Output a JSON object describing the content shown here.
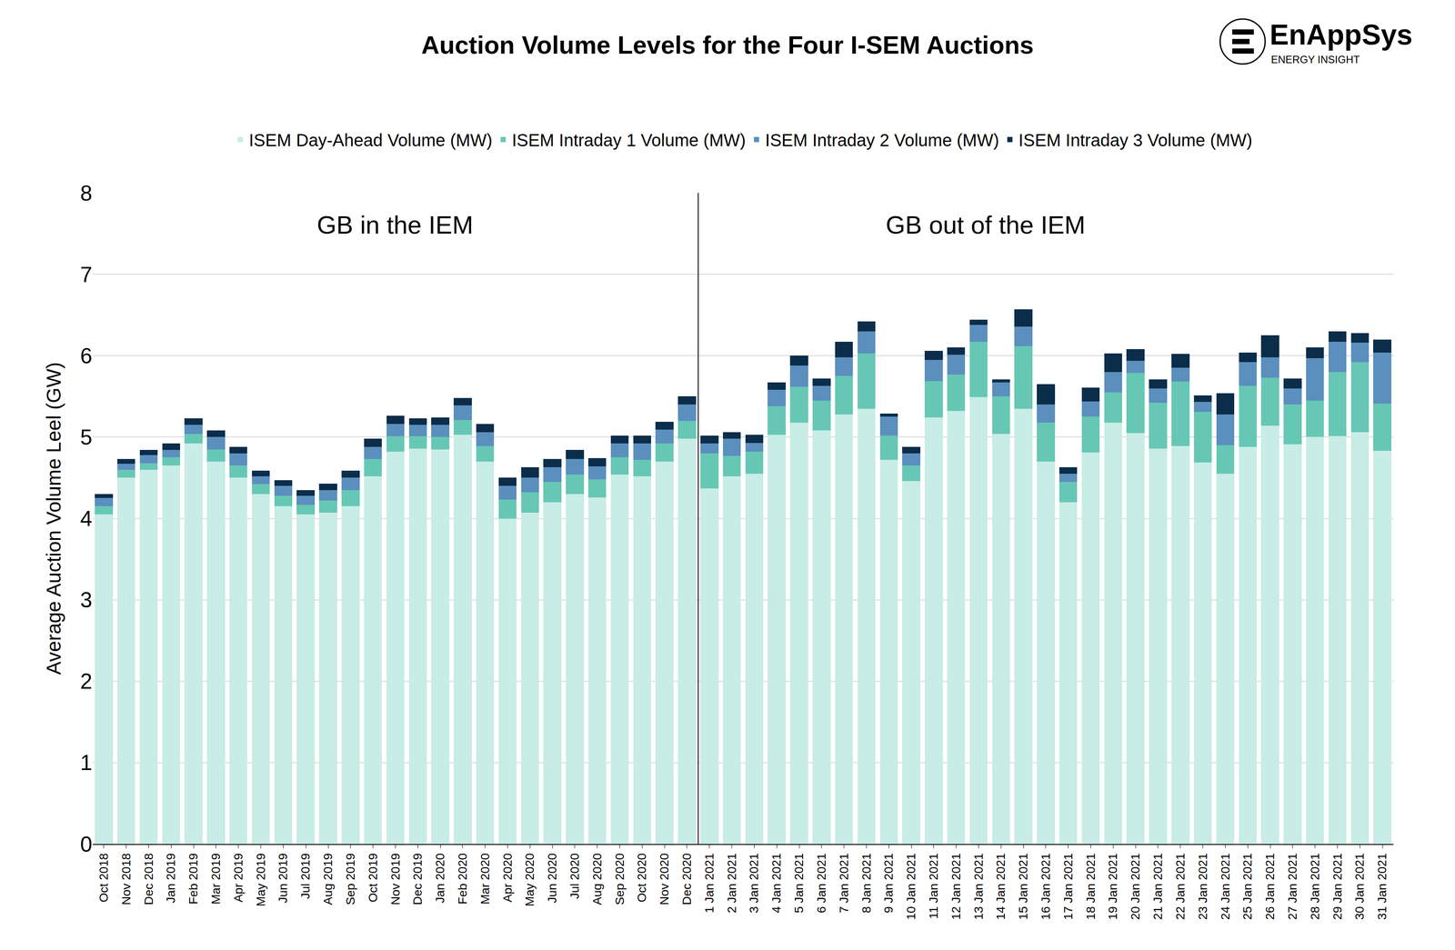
{
  "chart_data": {
    "type": "bar",
    "stacked": true,
    "title": "Auction Volume Levels for the Four I-SEM Auctions",
    "y_label": "Average Auction Volume Leel (GW)",
    "logo": {
      "text": "EnAppSys",
      "subtext": "ENERGY INSIGHT"
    },
    "annotations": [
      {
        "text": "GB in the IEM",
        "arrow": "left"
      },
      {
        "text": "GB out of the IEM",
        "arrow": "right"
      }
    ],
    "divider_before": "1 Jan 2021",
    "legend": "top",
    "grid": true,
    "ylim": [
      0,
      8
    ],
    "yticks": [
      0,
      1,
      2,
      3,
      4,
      5,
      6,
      7,
      8
    ],
    "categories": [
      "Oct 2018",
      "Nov 2018",
      "Dec 2018",
      "Jan 2019",
      "Feb 2019",
      "Mar 2019",
      "Apr 2019",
      "May 2019",
      "Jun 2019",
      "Jul 2019",
      "Aug 2019",
      "Sep 2019",
      "Oct 2019",
      "Nov 2019",
      "Dec 2019",
      "Jan 2020",
      "Feb 2020",
      "Mar 2020",
      "Apr 2020",
      "May 2020",
      "Jun 2020",
      "Jul 2020",
      "Aug 2020",
      "Sep 2020",
      "Oct 2020",
      "Nov 2020",
      "Dec 2020",
      "1 Jan 2021",
      "2 Jan 2021",
      "3 Jan 2021",
      "4 Jan 2021",
      "5 Jan 2021",
      "6 Jan 2021",
      "7 Jan 2021",
      "8 Jan 2021",
      "9 Jan 2021",
      "10 Jan 2021",
      "11 Jan 2021",
      "12 Jan 2021",
      "13 Jan 2021",
      "14 Jan 2021",
      "15 Jan 2021",
      "16 Jan 2021",
      "17 Jan 2021",
      "18 Jan 2021",
      "19 Jan 2021",
      "20 Jan 2021",
      "21 Jan 2021",
      "22 Jan 2021",
      "23 Jan 2021",
      "24 Jan 2021",
      "25 Jan 2021",
      "26 Jan 2021",
      "27 Jan 2021",
      "28 Jan 2021",
      "29 Jan 2021",
      "30 Jan 2021",
      "31 Jan 2021"
    ],
    "series": [
      {
        "name": "ISEM Day-Ahead Volume (MW)",
        "color": "#c8ece6",
        "values": [
          4.05,
          4.5,
          4.6,
          4.65,
          4.92,
          4.7,
          4.5,
          4.3,
          4.15,
          4.05,
          4.07,
          4.15,
          4.52,
          4.82,
          4.86,
          4.85,
          5.03,
          4.7,
          4.0,
          4.07,
          4.2,
          4.3,
          4.26,
          4.54,
          4.52,
          4.7,
          4.98,
          4.37,
          4.52,
          4.55,
          5.03,
          5.18,
          5.08,
          5.28,
          5.35,
          4.72,
          4.46,
          5.24,
          5.32,
          5.49,
          5.04,
          5.35,
          4.7,
          4.2,
          4.81,
          5.18,
          5.05,
          4.86,
          4.89,
          4.69,
          4.55,
          4.88,
          5.14,
          4.91,
          5.0,
          5.01,
          5.06,
          4.83
        ]
      },
      {
        "name": "ISEM Intraday 1 Volume (MW)",
        "color": "#66c8b4",
        "values": [
          0.1,
          0.1,
          0.08,
          0.1,
          0.12,
          0.15,
          0.15,
          0.12,
          0.13,
          0.12,
          0.15,
          0.2,
          0.21,
          0.19,
          0.15,
          0.15,
          0.18,
          0.19,
          0.23,
          0.25,
          0.25,
          0.24,
          0.22,
          0.21,
          0.2,
          0.22,
          0.22,
          0.43,
          0.25,
          0.27,
          0.35,
          0.44,
          0.37,
          0.47,
          0.68,
          0.3,
          0.19,
          0.45,
          0.45,
          0.68,
          0.46,
          0.77,
          0.48,
          0.25,
          0.44,
          0.37,
          0.74,
          0.56,
          0.79,
          0.62,
          0.35,
          0.75,
          0.59,
          0.49,
          0.45,
          0.79,
          0.86,
          0.58
        ]
      },
      {
        "name": "ISEM Intraday 2 Volume (MW)",
        "color": "#5b8fbe",
        "values": [
          0.1,
          0.07,
          0.1,
          0.09,
          0.11,
          0.15,
          0.15,
          0.1,
          0.12,
          0.11,
          0.13,
          0.15,
          0.15,
          0.15,
          0.14,
          0.15,
          0.18,
          0.17,
          0.17,
          0.18,
          0.18,
          0.19,
          0.16,
          0.17,
          0.2,
          0.17,
          0.2,
          0.12,
          0.21,
          0.11,
          0.2,
          0.26,
          0.18,
          0.23,
          0.27,
          0.23,
          0.15,
          0.26,
          0.24,
          0.21,
          0.17,
          0.24,
          0.22,
          0.1,
          0.19,
          0.25,
          0.15,
          0.18,
          0.17,
          0.12,
          0.38,
          0.29,
          0.25,
          0.2,
          0.52,
          0.37,
          0.24,
          0.63
        ]
      },
      {
        "name": "ISEM Intraday 3 Volume (MW)",
        "color": "#0b2d4a",
        "values": [
          0.05,
          0.06,
          0.06,
          0.08,
          0.08,
          0.08,
          0.08,
          0.07,
          0.07,
          0.07,
          0.08,
          0.09,
          0.1,
          0.1,
          0.08,
          0.09,
          0.09,
          0.1,
          0.1,
          0.13,
          0.1,
          0.11,
          0.1,
          0.1,
          0.1,
          0.1,
          0.1,
          0.1,
          0.08,
          0.1,
          0.09,
          0.12,
          0.09,
          0.19,
          0.12,
          0.04,
          0.08,
          0.11,
          0.09,
          0.06,
          0.04,
          0.21,
          0.25,
          0.08,
          0.17,
          0.23,
          0.14,
          0.11,
          0.17,
          0.08,
          0.26,
          0.12,
          0.27,
          0.12,
          0.13,
          0.13,
          0.12,
          0.16
        ]
      }
    ]
  }
}
